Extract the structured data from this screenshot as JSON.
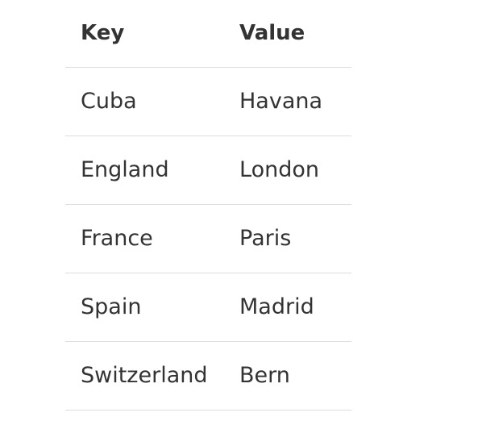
{
  "table": {
    "headers": {
      "key": "Key",
      "value": "Value"
    },
    "rows": [
      {
        "key": "Cuba",
        "value": "Havana"
      },
      {
        "key": "England",
        "value": "London"
      },
      {
        "key": "France",
        "value": "Paris"
      },
      {
        "key": "Spain",
        "value": "Madrid"
      },
      {
        "key": "Switzerland",
        "value": "Bern"
      }
    ]
  }
}
